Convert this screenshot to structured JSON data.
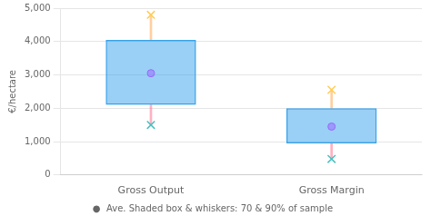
{
  "chart_data": {
    "type": "box",
    "categories": [
      "Gross Output",
      "Gross Margin"
    ],
    "q1": [
      2100,
      950
    ],
    "q3": [
      4050,
      2000
    ],
    "mean": [
      3050,
      1450
    ],
    "whisker_low": [
      1500,
      480
    ],
    "whisker_high": [
      4800,
      2550
    ],
    "ylabel": "€/hectare",
    "ylim": [
      0,
      5000
    ],
    "yticks": [
      0,
      1000,
      2000,
      3000,
      4000,
      5000
    ],
    "grid": true,
    "caption": "●  Ave. Shaded box & whiskers: 70 & 90% of sample"
  }
}
